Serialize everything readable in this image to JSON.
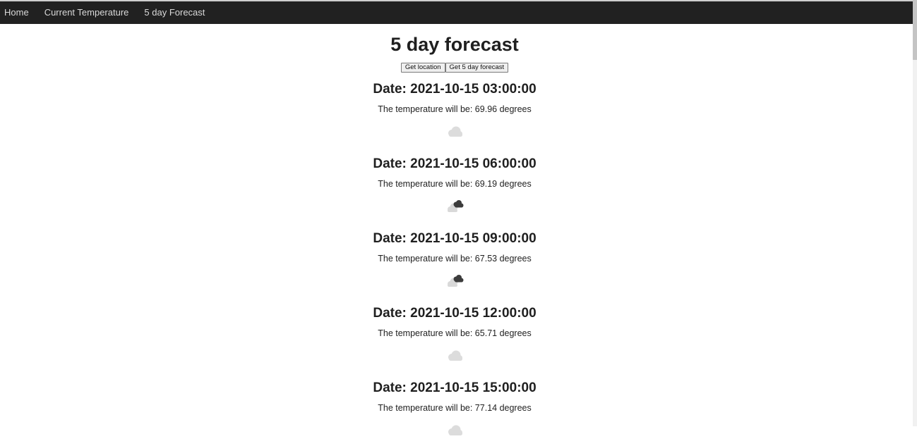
{
  "nav": {
    "items": [
      {
        "label": "Home"
      },
      {
        "label": "Current Temperature"
      },
      {
        "label": "5 day Forecast"
      }
    ]
  },
  "main": {
    "title": "5 day forecast",
    "buttons": {
      "location_label": "Get location",
      "forecast_label": "Get 5 day forecast"
    },
    "forecast": [
      {
        "date": "Date: 2021-10-15 03:00:00",
        "temp": "The temperature will be: 69.96 degrees",
        "icon": "cloud-icon"
      },
      {
        "date": "Date: 2021-10-15 06:00:00",
        "temp": "The temperature will be: 69.19 degrees",
        "icon": "broken-clouds-icon"
      },
      {
        "date": "Date: 2021-10-15 09:00:00",
        "temp": "The temperature will be: 67.53 degrees",
        "icon": "broken-clouds-icon"
      },
      {
        "date": "Date: 2021-10-15 12:00:00",
        "temp": "The temperature will be: 65.71 degrees",
        "icon": "cloud-icon"
      },
      {
        "date": "Date: 2021-10-15 15:00:00",
        "temp": "The temperature will be: 77.14 degrees",
        "icon": "cloud-icon"
      }
    ]
  }
}
